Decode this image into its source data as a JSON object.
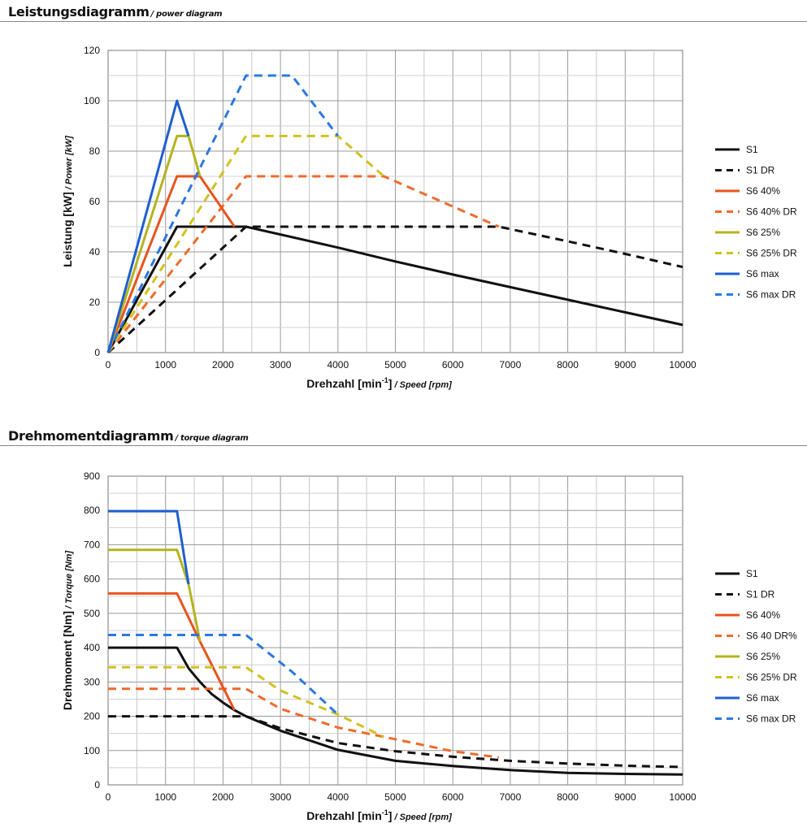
{
  "chart_data": [
    {
      "type": "line",
      "title": "Leistungsdiagramm",
      "subtitle": "/ power diagram",
      "xlabel_main": "Drehzahl [min",
      "xlabel_sup": "-1",
      "xlabel_end": "]",
      "xlabel_sub": "/ Speed [rpm]",
      "ylabel_main": "Leistung [kW]",
      "ylabel_sub": "/ Power [kW]",
      "xlim": [
        0,
        10000
      ],
      "ylim": [
        0,
        120
      ],
      "xticks": [
        0,
        1000,
        2000,
        3000,
        4000,
        5000,
        6000,
        7000,
        8000,
        9000,
        10000
      ],
      "yticks": [
        0,
        20,
        40,
        60,
        80,
        100,
        120
      ],
      "grid": true,
      "legend_position": "right",
      "series": [
        {
          "name": "S1",
          "color": "#111111",
          "dashed": false,
          "x": [
            0,
            1200,
            2400,
            4000,
            5000,
            6000,
            7000,
            8000,
            9000,
            10000
          ],
          "y": [
            0,
            50,
            50,
            41.7,
            36.2,
            31,
            26,
            21,
            16,
            11
          ]
        },
        {
          "name": "S1 DR",
          "color": "#111111",
          "dashed": true,
          "x": [
            0,
            2400,
            6800,
            8000,
            9000,
            10000
          ],
          "y": [
            0,
            50,
            50,
            44.2,
            39.2,
            34
          ]
        },
        {
          "name": "S6 40%",
          "color": "#e8531e",
          "dashed": false,
          "x": [
            0,
            1200,
            1600,
            2200
          ],
          "y": [
            0,
            70,
            70,
            50
          ]
        },
        {
          "name": "S6 40% DR",
          "color": "#f06a2a",
          "dashed": true,
          "x": [
            0,
            2400,
            4800,
            6800
          ],
          "y": [
            0,
            70,
            70,
            50
          ]
        },
        {
          "name": "S6 25%",
          "color": "#b4b41e",
          "dashed": false,
          "x": [
            0,
            1200,
            1400,
            1600
          ],
          "y": [
            0,
            86,
            86,
            70
          ]
        },
        {
          "name": "S6 25% DR",
          "color": "#d0c21e",
          "dashed": true,
          "x": [
            0,
            2400,
            4000,
            4800
          ],
          "y": [
            0,
            86,
            86,
            70
          ]
        },
        {
          "name": "S6 max",
          "color": "#1e5fd0",
          "dashed": false,
          "x": [
            0,
            1200,
            1400
          ],
          "y": [
            0,
            100,
            86
          ]
        },
        {
          "name": "S6 max DR",
          "color": "#2a78e0",
          "dashed": true,
          "x": [
            0,
            2400,
            3200,
            4000
          ],
          "y": [
            0,
            110,
            110,
            86
          ]
        }
      ]
    },
    {
      "type": "line",
      "title": "Drehmomentdiagramm",
      "subtitle": "/ torque diagram",
      "xlabel_main": "Drehzahl [min",
      "xlabel_sup": "-1",
      "xlabel_end": "]",
      "xlabel_sub": "/ Speed [rpm]",
      "ylabel_main": "Drehmoment [Nm]",
      "ylabel_sub": "/ Torque [Nm]",
      "xlim": [
        0,
        10000
      ],
      "ylim": [
        0,
        900
      ],
      "xticks": [
        0,
        1000,
        2000,
        3000,
        4000,
        5000,
        6000,
        7000,
        8000,
        9000,
        10000
      ],
      "yticks": [
        0,
        100,
        200,
        300,
        400,
        500,
        600,
        700,
        800,
        900
      ],
      "grid": true,
      "legend_position": "right",
      "series": [
        {
          "name": "S1",
          "color": "#111111",
          "dashed": false,
          "x": [
            0,
            1200,
            1400,
            1600,
            1800,
            2000,
            2200,
            2400,
            3000,
            4000,
            5000,
            6000,
            7000,
            8000,
            9000,
            10000
          ],
          "y": [
            400,
            400,
            340,
            300,
            265,
            240,
            218,
            200,
            158,
            102,
            70,
            55,
            43,
            35,
            32,
            30
          ]
        },
        {
          "name": "S1 DR",
          "color": "#111111",
          "dashed": true,
          "x": [
            0,
            2400,
            3000,
            4000,
            5000,
            6000,
            7000,
            8000,
            9000,
            10000
          ],
          "y": [
            200,
            200,
            165,
            122,
            98,
            82,
            70,
            62,
            56,
            52
          ]
        },
        {
          "name": "S6 40%",
          "color": "#e8531e",
          "dashed": false,
          "x": [
            0,
            1200,
            1600,
            2200
          ],
          "y": [
            558,
            558,
            418,
            218
          ]
        },
        {
          "name": "S6 40 DR%",
          "color": "#f06a2a",
          "dashed": true,
          "x": [
            0,
            2400,
            3000,
            4000,
            4800,
            6000,
            6800
          ],
          "y": [
            280,
            280,
            222,
            167,
            140,
            98,
            80
          ]
        },
        {
          "name": "S6 25%",
          "color": "#b4b41e",
          "dashed": false,
          "x": [
            0,
            1200,
            1400,
            1600
          ],
          "y": [
            685,
            685,
            585,
            418
          ]
        },
        {
          "name": "S6 25% DR",
          "color": "#d0c21e",
          "dashed": true,
          "x": [
            0,
            2400,
            3000,
            4000,
            4800
          ],
          "y": [
            343,
            343,
            275,
            205,
            140
          ]
        },
        {
          "name": "S6 max",
          "color": "#1e5fd0",
          "dashed": false,
          "x": [
            0,
            1200,
            1400
          ],
          "y": [
            798,
            798,
            585
          ]
        },
        {
          "name": "S6 max DR",
          "color": "#2a78e0",
          "dashed": true,
          "x": [
            0,
            2400,
            3200,
            4000
          ],
          "y": [
            437,
            437,
            330,
            205
          ]
        }
      ]
    }
  ]
}
